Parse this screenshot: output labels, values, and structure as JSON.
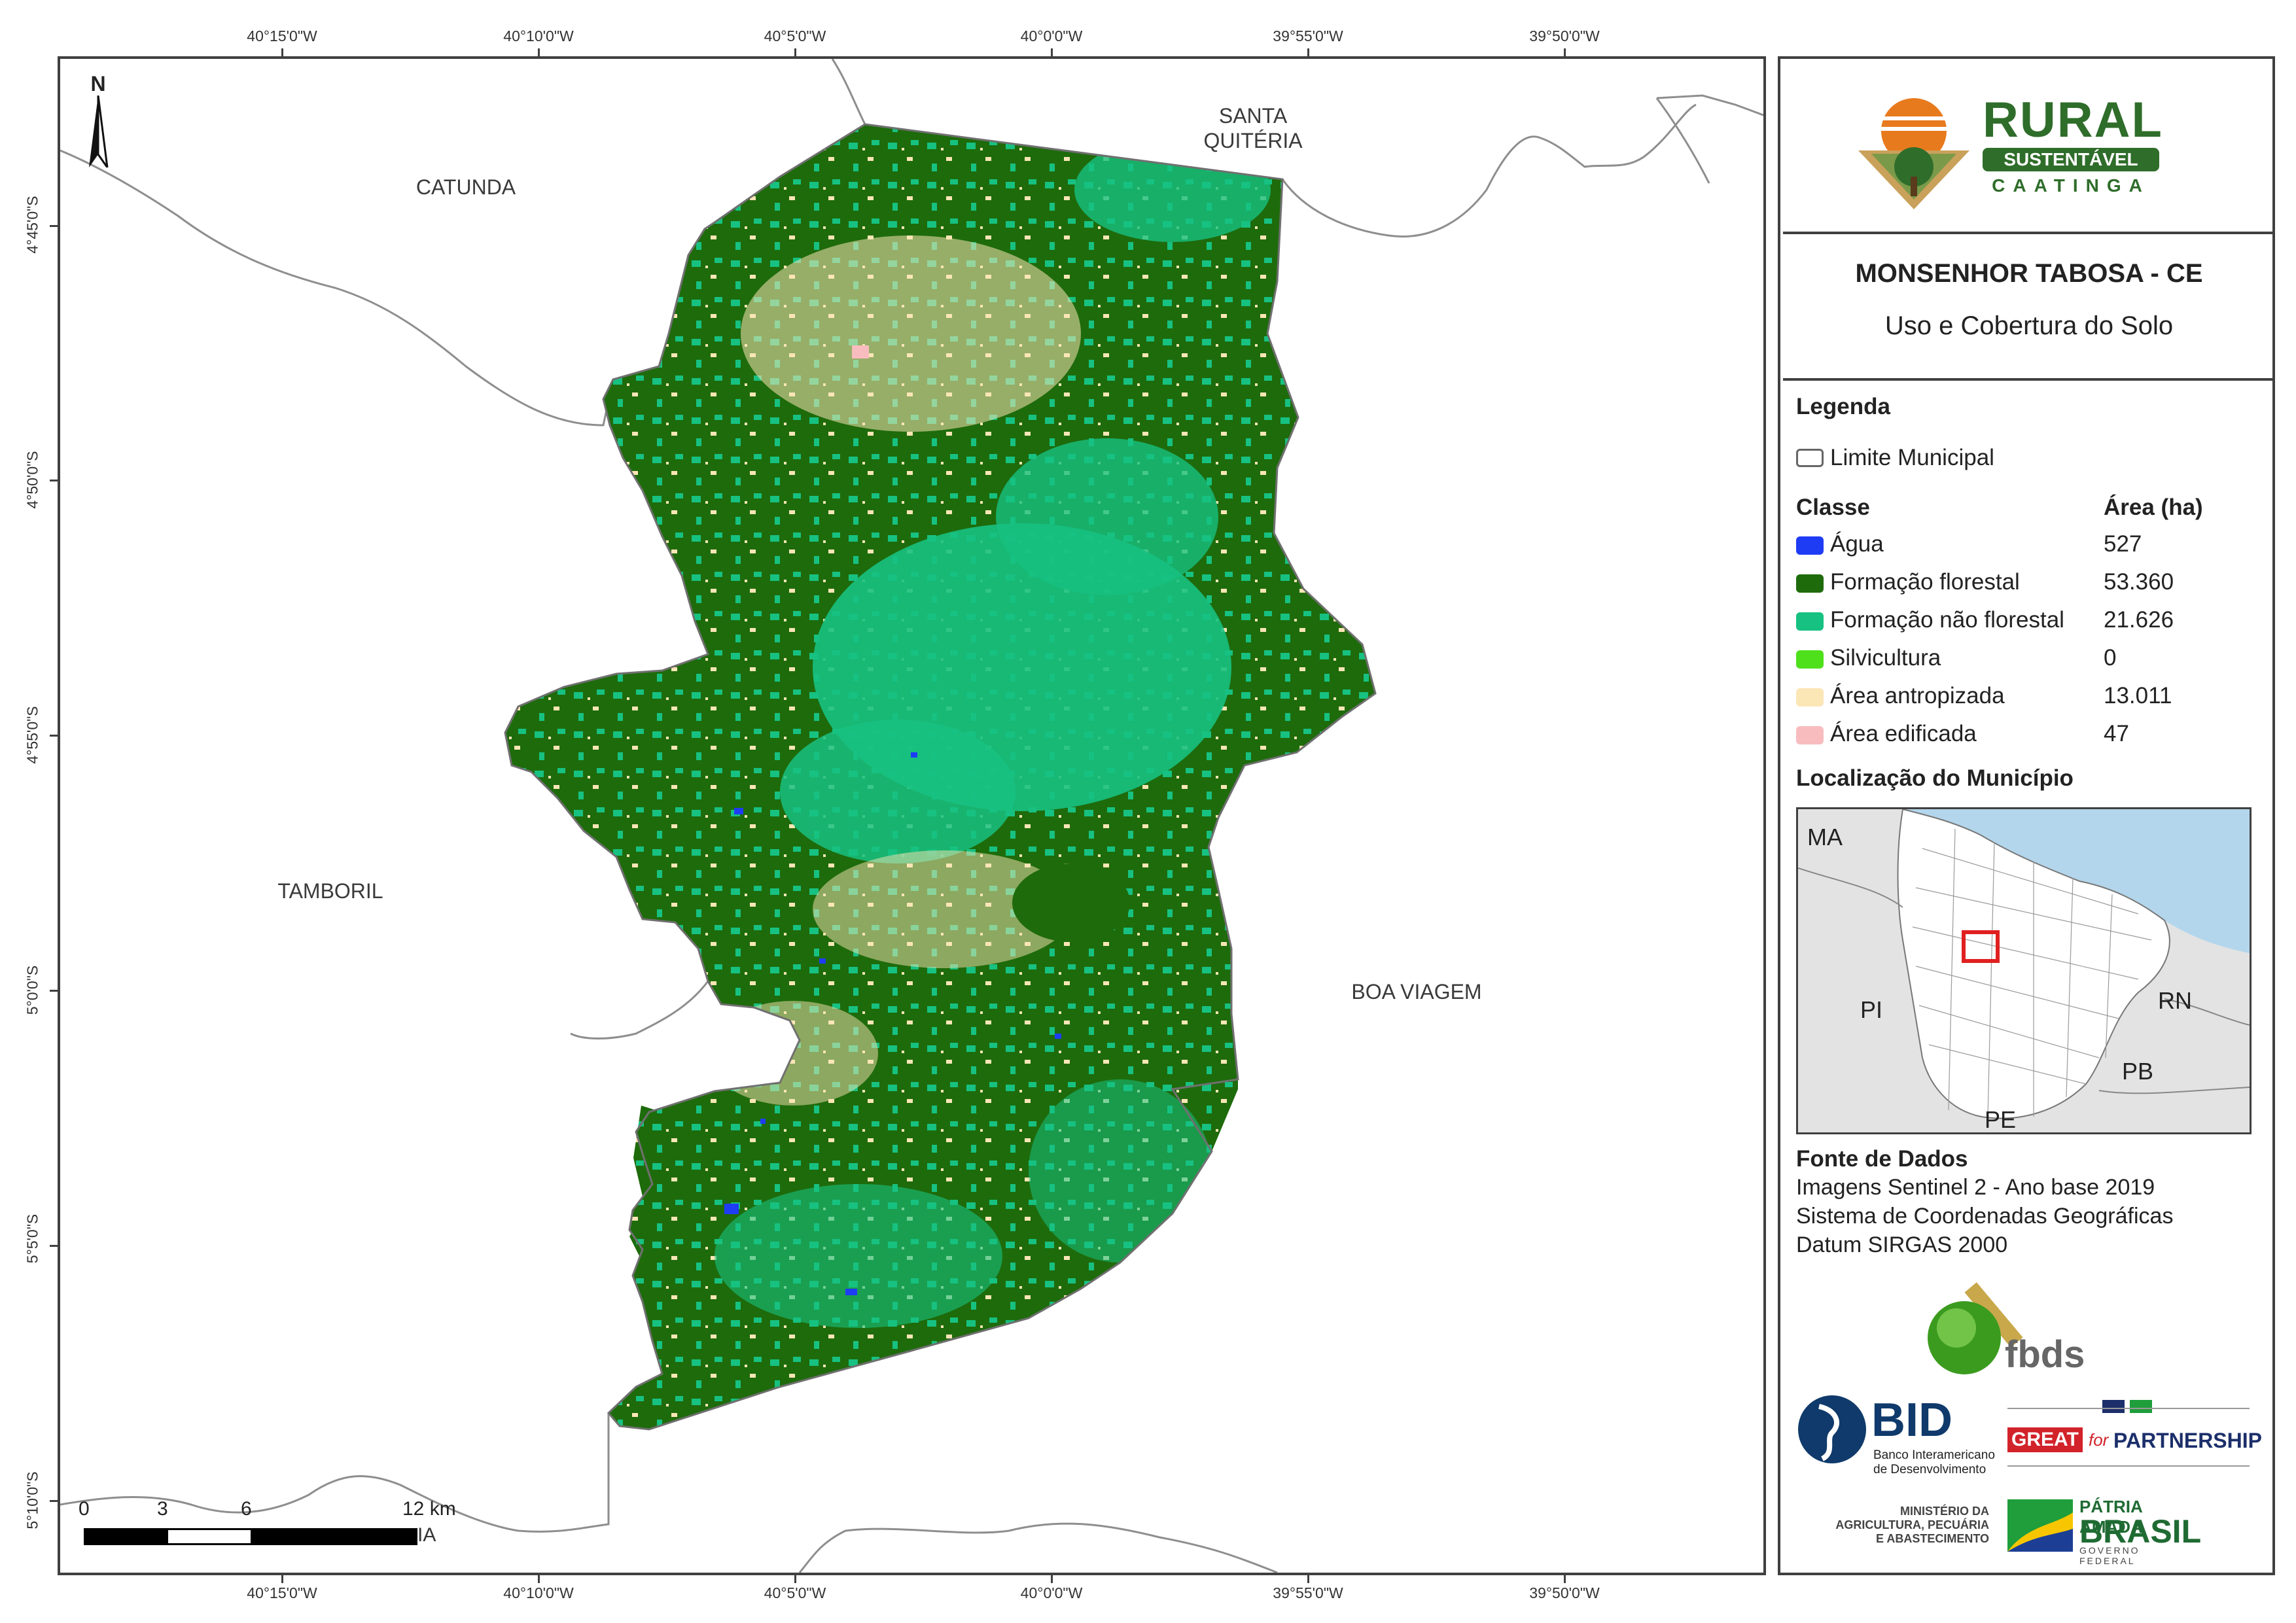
{
  "map": {
    "lon_labels": [
      "40°15'0\"W",
      "40°10'0\"W",
      "40°5'0\"W",
      "40°0'0\"W",
      "39°55'0\"W",
      "39°50'0\"W"
    ],
    "lat_labels": [
      "4°45'0\"S",
      "4°50'0\"S",
      "4°55'0\"S",
      "5°0'0\"S",
      "5°5'0\"S",
      "5°10'0\"S"
    ],
    "places": {
      "catunda": "CATUNDA",
      "santa_quiteria_1": "SANTA",
      "santa_quiteria_2": "QUITÉRIA",
      "tamboril": "TAMBORIL",
      "boa_viagem": "BOA VIAGEM"
    },
    "north": "N",
    "scale": {
      "labels": [
        "0",
        "3",
        "6",
        "12 km"
      ],
      "stray_text": "IA"
    }
  },
  "logo": {
    "rural": "RURAL",
    "sustentavel": "SUSTENTÁVEL",
    "caatinga": "CAATINGA"
  },
  "title": {
    "main": "MONSENHOR TABOSA - CE",
    "sub": "Uso e Cobertura do Solo"
  },
  "legend": {
    "heading": "Legenda",
    "boundary_label": "Limite Municipal",
    "class_heading": "Classe",
    "area_heading": "Área (ha)",
    "classes": [
      {
        "label": "Água",
        "area": "527",
        "color": "#1f3cf5"
      },
      {
        "label": "Formação florestal",
        "area": "53.360",
        "color": "#1e6b0b"
      },
      {
        "label": "Formação não florestal",
        "area": "21.626",
        "color": "#17c181"
      },
      {
        "label": "Silvicultura",
        "area": "0",
        "color": "#4fe01c"
      },
      {
        "label": "Área antropizada",
        "area": "13.011",
        "color": "#fbe6b6"
      },
      {
        "label": "Área edificada",
        "area": "47",
        "color": "#f8bcbf"
      }
    ]
  },
  "location": {
    "heading": "Localização do Município",
    "states": [
      "MA",
      "PI",
      "RN",
      "PB",
      "PE"
    ]
  },
  "sources": {
    "heading": "Fonte de Dados",
    "lines": [
      "Imagens Sentinel 2 - Ano base 2019",
      "Sistema de Coordenadas Geográficas",
      "Datum SIRGAS 2000"
    ]
  },
  "partners": {
    "fbds": "fbds",
    "bid": "BID",
    "bid_sub_1": "Banco Interamericano",
    "bid_sub_2": "de Desenvolvimento",
    "great": "GREAT",
    "great_for": "for",
    "great_partnership": "PARTNERSHIP",
    "ministerio_1": "MINISTÉRIO DA",
    "ministerio_2": "AGRICULTURA, PECUÁRIA",
    "ministerio_3": "E ABASTECIMENTO",
    "patria": "PÁTRIA AMADA",
    "brasil": "BRASIL",
    "governo": "GOVERNO FEDERAL"
  }
}
